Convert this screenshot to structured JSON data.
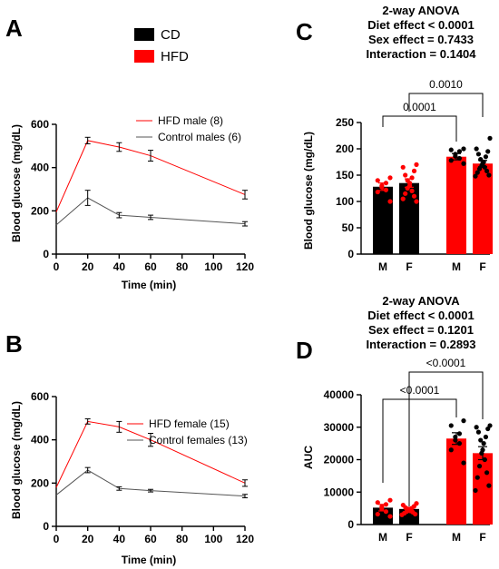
{
  "legend": {
    "items": [
      {
        "label": "CD",
        "color": "#000000"
      },
      {
        "label": "HFD",
        "color": "#ff0000"
      }
    ]
  },
  "colors": {
    "hfd": "#ff0000",
    "cd": "#000000",
    "control_line": "#555555"
  },
  "chart_data": [
    {
      "panel": "A",
      "type": "line",
      "title": "",
      "xlabel": "Time (min)",
      "ylabel": "Blood glucose (mg/dL)",
      "x": [
        0,
        20,
        40,
        60,
        120
      ],
      "xticks": [
        "0",
        "20",
        "40",
        "60",
        "80",
        "100",
        "120"
      ],
      "xlim": [
        0,
        120
      ],
      "yticks": [
        "0",
        "200",
        "400",
        "600"
      ],
      "ylim": [
        0,
        600
      ],
      "legend_position": "top-right",
      "series": [
        {
          "name": "HFD male (8)",
          "color": "#ff0000",
          "values": [
            195,
            525,
            495,
            455,
            275
          ],
          "errors": [
            0,
            15,
            20,
            25,
            20
          ]
        },
        {
          "name": "Control males (6)",
          "color": "#555555",
          "values": [
            135,
            260,
            180,
            170,
            140
          ],
          "errors": [
            0,
            35,
            12,
            10,
            10
          ]
        }
      ]
    },
    {
      "panel": "B",
      "type": "line",
      "title": "",
      "xlabel": "Time (min)",
      "ylabel": "Blood glucose (mg/dL)",
      "x": [
        0,
        20,
        40,
        60,
        120
      ],
      "xticks": [
        "0",
        "20",
        "40",
        "60",
        "80",
        "100",
        "120"
      ],
      "xlim": [
        0,
        120
      ],
      "yticks": [
        "0",
        "200",
        "400",
        "600"
      ],
      "ylim": [
        0,
        600
      ],
      "legend_position": "middle-right",
      "series": [
        {
          "name": "HFD female (15)",
          "color": "#ff0000",
          "values": [
            180,
            485,
            460,
            400,
            200
          ],
          "errors": [
            0,
            12,
            25,
            30,
            15
          ]
        },
        {
          "name": "Control females (13)",
          "color": "#555555",
          "values": [
            145,
            260,
            175,
            165,
            140
          ],
          "errors": [
            0,
            12,
            8,
            6,
            8
          ]
        }
      ]
    },
    {
      "panel": "C",
      "type": "bar",
      "title": "",
      "anova_lines": [
        "2-way ANOVA",
        "Diet effect < 0.0001",
        "Sex effect = 0.7433",
        "Interaction = 0.1404"
      ],
      "xlabel": "",
      "ylabel": "Blood glucose (mg/dL)",
      "categories": [
        "M",
        "F",
        "M",
        "F"
      ],
      "yticks": [
        "0",
        "50",
        "100",
        "150",
        "200",
        "250"
      ],
      "ylim": [
        0,
        250
      ],
      "bars": [
        {
          "group": "CD",
          "value": 128,
          "error": 7,
          "color": "#000000",
          "points": [
            145,
            140,
            135,
            130,
            127,
            122,
            118,
            100
          ]
        },
        {
          "group": "CD",
          "value": 135,
          "error": 8,
          "color": "#000000",
          "points": [
            170,
            165,
            158,
            150,
            145,
            140,
            135,
            130,
            125,
            120,
            115,
            110,
            105,
            100
          ]
        },
        {
          "group": "HFD",
          "value": 185,
          "error": 6,
          "color": "#ff0000",
          "points": [
            200,
            198,
            195,
            190,
            186,
            182,
            178,
            172
          ]
        },
        {
          "group": "HFD",
          "value": 172,
          "error": 6,
          "color": "#ff0000",
          "points": [
            220,
            200,
            195,
            190,
            185,
            180,
            175,
            172,
            168,
            165,
            162,
            158,
            155,
            150,
            148
          ]
        }
      ],
      "brackets": [
        {
          "from": 0,
          "to": 2,
          "label": "0.0001"
        },
        {
          "from": 1,
          "to": 3,
          "label": "0.0010"
        }
      ]
    },
    {
      "panel": "D",
      "type": "bar",
      "title": "",
      "anova_lines": [
        "2-way ANOVA",
        "Diet effect < 0.0001",
        "Sex effect = 0.1201",
        "Interaction = 0.2893"
      ],
      "xlabel": "",
      "ylabel": "AUC",
      "categories": [
        "M",
        "F",
        "M",
        "F"
      ],
      "yticks": [
        "0",
        "10000",
        "20000",
        "30000",
        "40000"
      ],
      "ylim": [
        0,
        40000
      ],
      "bars": [
        {
          "group": "CD",
          "value": 5200,
          "error": 1000,
          "color": "#000000",
          "points": [
            7500,
            6800,
            6200,
            5500,
            4800,
            4000,
            3200,
            2500
          ]
        },
        {
          "group": "CD",
          "value": 4800,
          "error": 500,
          "color": "#000000",
          "points": [
            6500,
            6000,
            5600,
            5200,
            5000,
            4800,
            4500,
            4200,
            4000,
            3800,
            3500,
            3200,
            3000
          ]
        },
        {
          "group": "HFD",
          "value": 26500,
          "error": 1800,
          "color": "#ff0000",
          "points": [
            32000,
            30500,
            28000,
            27000,
            26000,
            25000,
            23000,
            19000
          ]
        },
        {
          "group": "HFD",
          "value": 22000,
          "error": 2000,
          "color": "#ff0000",
          "points": [
            30500,
            30000,
            29500,
            28500,
            27000,
            26000,
            25000,
            23000,
            22000,
            20000,
            18000,
            16000,
            14500,
            12000,
            10500
          ]
        }
      ],
      "brackets": [
        {
          "from": 0,
          "to": 2,
          "label": "<0.0001"
        },
        {
          "from": 1,
          "to": 3,
          "label": "<0.0001"
        }
      ]
    }
  ]
}
